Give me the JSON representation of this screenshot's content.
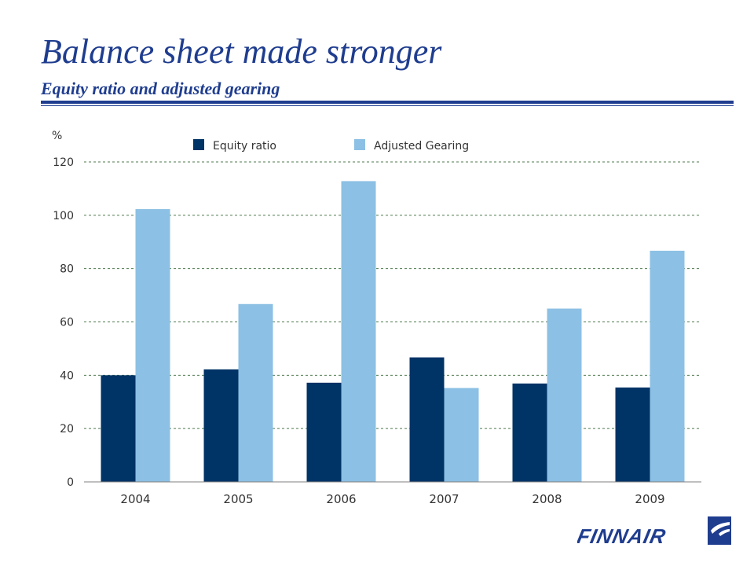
{
  "header": {
    "title": "Balance sheet made stronger",
    "subtitle": "Equity ratio and adjusted gearing"
  },
  "brand": {
    "name": "FINNAIR",
    "color": "#1f3d8f"
  },
  "chart_data": {
    "type": "bar",
    "ylabel": "%",
    "categories": [
      "2004",
      "2005",
      "2006",
      "2007",
      "2008",
      "2009"
    ],
    "series": [
      {
        "name": "Equity ratio",
        "color": "#003366",
        "values": [
          40,
          42.2,
          37.2,
          46.7,
          36.9,
          35.4
        ]
      },
      {
        "name": "Adjusted Gearing",
        "color": "#8cc0e4",
        "values": [
          102.3,
          66.7,
          112.8,
          35.2,
          65,
          86.7
        ]
      }
    ],
    "ylim": [
      0,
      120
    ],
    "yticks": [
      0,
      20,
      40,
      60,
      80,
      100,
      120
    ],
    "grid": true,
    "legend": "top"
  }
}
